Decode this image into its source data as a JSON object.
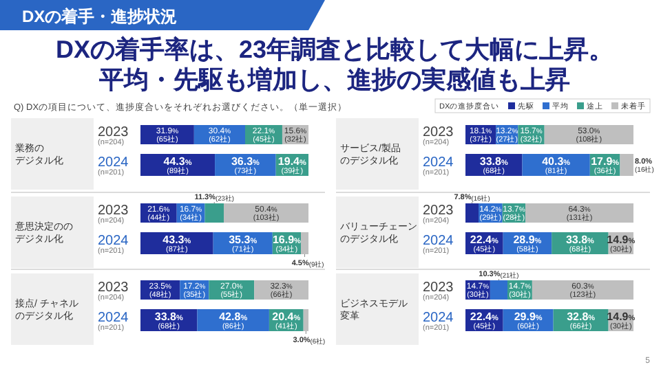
{
  "chart_data": [
    {
      "type": "other",
      "title": "DXの着手・進捗状況",
      "subtitle": "DXの着手率は、23年調査と比較して大幅に上昇。平均・先駆も増加し、進捗の実感値も上昇",
      "annotations": [
        "Q) DXの項目について、進捗度合いをそれぞれお選びください。（単一選択）",
        "5"
      ]
    },
    {
      "type": "bar",
      "orientation": "horizontal",
      "stacked": true,
      "title": "業務のデジタル化",
      "categories": [
        "2023$_{(n=204)}$",
        "2024$_{(n=201)}$"
      ],
      "legend": false,
      "series": [
        {
          "color": "#1f2d9c",
          "values": [
            31.9,
            44.3
          ],
          "value_labels": [
            "31.9%$_{(65社)}$",
            "44.3%$_{(89社)}$"
          ]
        },
        {
          "color": "#2f6fcf",
          "values": [
            30.4,
            36.3
          ],
          "value_labels": [
            "30.4%$_{(62社)}$",
            "36.3%$_{(73社)}$"
          ]
        },
        {
          "color": "#3a9e8c",
          "values": [
            22.1,
            19.4
          ],
          "value_labels": [
            "22.1%$_{(45社)}$",
            "19.4%$_{(39社)}$"
          ]
        },
        {
          "color": "#bfbfbf",
          "values": [
            15.6,
            null
          ],
          "value_labels": [
            "15.6%$_{(32社)}$",
            null
          ]
        }
      ]
    },
    {
      "type": "bar",
      "orientation": "horizontal",
      "stacked": true,
      "title": "サービス/製品のデジタル化",
      "categories": [
        "2023$_{(n=204)}$",
        "2024$_{(n=201)}$"
      ],
      "legend": "top right",
      "legend_title": "DXの進捗度合い",
      "series": [
        {
          "name": "先駆",
          "color": "#1f2d9c",
          "values": [
            18.1,
            33.8
          ],
          "value_labels": [
            "18.1%$_{(37社)}$",
            "33.8%$_{(68社)}$"
          ]
        },
        {
          "name": "平均",
          "color": "#2f6fcf",
          "values": [
            13.2,
            40.3
          ],
          "value_labels": [
            "13.2%$_{(27社)}$",
            "40.3%$_{(81社)}$"
          ]
        },
        {
          "name": "途上",
          "color": "#3a9e8c",
          "values": [
            15.7,
            17.9
          ],
          "value_labels": [
            "15.7%$_{(32社)}$",
            "17.9%$_{(36社)}$"
          ]
        },
        {
          "name": "未着手",
          "color": "#bfbfbf",
          "values": [
            53.0,
            8.0
          ],
          "value_labels": [
            "53.0%$_{(108社)}$",
            "8.0%$_{(16社)}$"
          ]
        }
      ]
    },
    {
      "type": "bar",
      "orientation": "horizontal",
      "stacked": true,
      "title": "意思決定ののデジタル化",
      "categories": [
        "2023$_{(n=204)}$",
        "2024$_{(n=201)}$"
      ],
      "legend": false,
      "series": [
        {
          "color": "#1f2d9c",
          "values": [
            21.6,
            43.3
          ],
          "value_labels": [
            "21.6%$_{(44社)}$",
            "43.3%$_{(87社)}$"
          ]
        },
        {
          "color": "#2f6fcf",
          "values": [
            16.7,
            35.3
          ],
          "value_labels": [
            "16.7%$_{(34社)}$",
            "35.3%$_{(71社)}$"
          ]
        },
        {
          "color": "#3a9e8c",
          "values": [
            11.3,
            16.9
          ],
          "value_labels": [
            "11.3%$_{(23社)}$",
            "16.9%$_{(34社)}$"
          ]
        },
        {
          "color": "#bfbfbf",
          "values": [
            50.4,
            4.5
          ],
          "value_labels": [
            "50.4%$_{(103社)}$",
            "4.5%$_{(9社)}$"
          ]
        }
      ]
    },
    {
      "type": "bar",
      "orientation": "horizontal",
      "stacked": true,
      "title": "バリューチェーンのデジタル化",
      "categories": [
        "2023$_{(n=204)}$",
        "2024$_{(n=201)}$"
      ],
      "legend": false,
      "series": [
        {
          "color": "#1f2d9c",
          "values": [
            7.8,
            22.4
          ],
          "value_labels": [
            "7.8%$_{(16社)}$",
            "22.4%$_{(45社)}$"
          ]
        },
        {
          "color": "#2f6fcf",
          "values": [
            14.2,
            28.9
          ],
          "value_labels": [
            "14.2%$_{(29社)}$",
            "28.9%$_{(58社)}$"
          ]
        },
        {
          "color": "#3a9e8c",
          "values": [
            13.7,
            33.8
          ],
          "value_labels": [
            "13.7%$_{(28社)}$",
            "33.8%$_{(68社)}$"
          ]
        },
        {
          "color": "#bfbfbf",
          "values": [
            64.3,
            14.9
          ],
          "value_labels": [
            "64.3%$_{(131社)}$",
            "14.9%$_{(30社)}$"
          ]
        }
      ]
    },
    {
      "type": "bar",
      "orientation": "horizontal",
      "stacked": true,
      "title": "接点/ チャネルのデジタル化",
      "categories": [
        "2023$_{(n=204)}$",
        "2024$_{(n=201)}$"
      ],
      "legend": false,
      "series": [
        {
          "color": "#1f2d9c",
          "values": [
            23.5,
            33.8
          ],
          "value_labels": [
            "23.5%$_{(48社)}$",
            "33.8%$_{(68社)}$"
          ]
        },
        {
          "color": "#2f6fcf",
          "values": [
            17.2,
            42.8
          ],
          "value_labels": [
            "17.2%$_{(35社)}$",
            "42.8%$_{(86社)}$"
          ]
        },
        {
          "color": "#3a9e8c",
          "values": [
            27.0,
            20.4
          ],
          "value_labels": [
            "27.0%$_{(55社)}$",
            "20.4%$_{(41社)}$"
          ]
        },
        {
          "color": "#bfbfbf",
          "values": [
            32.3,
            3.0
          ],
          "value_labels": [
            "32.3%$_{(66社)}$",
            "3.0%$_{(6社)}$"
          ]
        }
      ]
    },
    {
      "type": "bar",
      "orientation": "horizontal",
      "stacked": true,
      "title": "ビジネスモデル変革",
      "categories": [
        "2023$_{(n=204)}$",
        "2024$_{(n=201)}$"
      ],
      "legend": false,
      "series": [
        {
          "color": "#1f2d9c",
          "values": [
            14.7,
            22.4
          ],
          "value_labels": [
            "14.7%$_{(30社)}$",
            "22.4%$_{(45社)}$"
          ]
        },
        {
          "color": "#2f6fcf",
          "values": [
            10.3,
            29.9
          ],
          "value_labels": [
            "10.3%$_{(21社)}$",
            "29.9%$_{(60社)}$"
          ]
        },
        {
          "color": "#3a9e8c",
          "values": [
            14.7,
            32.8
          ],
          "value_labels": [
            "14.7%$_{(30社)}$",
            "32.8%$_{(66社)}$"
          ]
        },
        {
          "color": "#bfbfbf",
          "values": [
            60.3,
            14.9
          ],
          "value_labels": [
            "60.3%$_{(123社)}$",
            "14.9%$_{(30社)}$"
          ]
        }
      ]
    }
  ]
}
